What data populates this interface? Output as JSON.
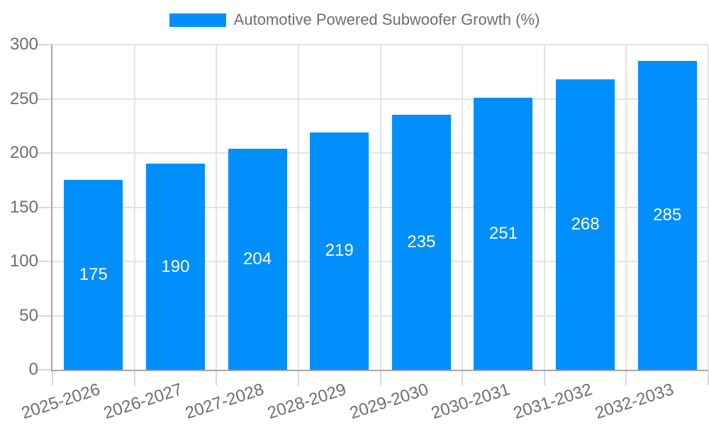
{
  "chart_data": {
    "type": "bar",
    "title": "Automotive Powered Subwoofer Growth (%)",
    "categories": [
      "2025-2026",
      "2026-2027",
      "2027-2028",
      "2028-2029",
      "2029-2030",
      "2030-2031",
      "2031-2032",
      "2032-2033"
    ],
    "values": [
      175,
      190,
      204,
      219,
      235,
      251,
      268,
      285
    ],
    "xlabel": "",
    "ylabel": "",
    "ylim": [
      0,
      300
    ],
    "yticks": [
      0,
      50,
      100,
      150,
      200,
      250,
      300
    ],
    "grid": true,
    "legend_position": "top",
    "value_labels": "inside-center",
    "colors": {
      "bar": "#008FFB",
      "value_label": "#ffffff",
      "axis_text": "#6e6e6e",
      "gridline": "#e3e3e3",
      "axis_line": "#a6a6a6",
      "tick": "#d9d9d9",
      "background": "#ffffff"
    }
  }
}
